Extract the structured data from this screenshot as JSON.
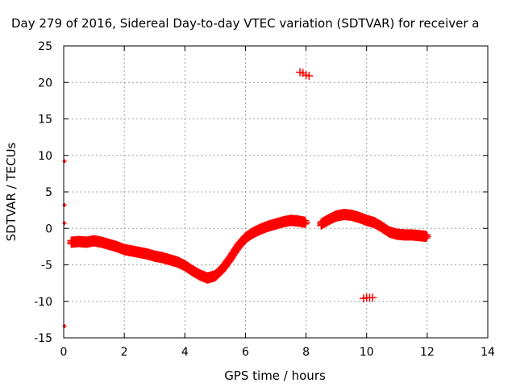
{
  "chart_data": {
    "type": "scatter",
    "title": "Day 279 of 2016, Sidereal Day-to-day VTEC variation (SDTVAR) for receiver a",
    "xlabel": "GPS time / hours",
    "ylabel": "SDTVAR / TECUs",
    "xlim": [
      0,
      14
    ],
    "ylim": [
      -15,
      25
    ],
    "x_ticks": [
      0,
      2,
      4,
      6,
      8,
      10,
      12,
      14
    ],
    "y_ticks": [
      -15,
      -10,
      -5,
      0,
      5,
      10,
      15,
      20,
      25
    ],
    "grid": true,
    "legend": "none",
    "marker": "+",
    "color": "#ff0000",
    "band_points": [
      {
        "x": 0.25,
        "y": -1.9
      },
      {
        "x": 0.5,
        "y": -1.8
      },
      {
        "x": 0.75,
        "y": -1.9
      },
      {
        "x": 1.0,
        "y": -1.7
      },
      {
        "x": 1.25,
        "y": -1.9
      },
      {
        "x": 1.5,
        "y": -2.2
      },
      {
        "x": 1.75,
        "y": -2.5
      },
      {
        "x": 2.0,
        "y": -2.9
      },
      {
        "x": 2.25,
        "y": -3.1
      },
      {
        "x": 2.5,
        "y": -3.3
      },
      {
        "x": 2.75,
        "y": -3.5
      },
      {
        "x": 3.0,
        "y": -3.8
      },
      {
        "x": 3.25,
        "y": -4.0
      },
      {
        "x": 3.5,
        "y": -4.3
      },
      {
        "x": 3.75,
        "y": -4.6
      },
      {
        "x": 4.0,
        "y": -5.1
      },
      {
        "x": 4.25,
        "y": -5.8
      },
      {
        "x": 4.5,
        "y": -6.4
      },
      {
        "x": 4.75,
        "y": -6.8
      },
      {
        "x": 5.0,
        "y": -6.5
      },
      {
        "x": 5.25,
        "y": -5.5
      },
      {
        "x": 5.5,
        "y": -4.1
      },
      {
        "x": 5.75,
        "y": -2.5
      },
      {
        "x": 6.0,
        "y": -1.3
      },
      {
        "x": 6.25,
        "y": -0.6
      },
      {
        "x": 6.5,
        "y": -0.1
      },
      {
        "x": 6.75,
        "y": 0.3
      },
      {
        "x": 7.0,
        "y": 0.6
      },
      {
        "x": 7.25,
        "y": 0.9
      },
      {
        "x": 7.5,
        "y": 1.1
      },
      {
        "x": 7.75,
        "y": 1.0
      },
      {
        "x": 8.0,
        "y": 0.8
      },
      {
        "x": 8.5,
        "y": 0.6
      },
      {
        "x": 8.75,
        "y": 1.2
      },
      {
        "x": 9.0,
        "y": 1.7
      },
      {
        "x": 9.25,
        "y": 1.9
      },
      {
        "x": 9.5,
        "y": 1.8
      },
      {
        "x": 9.75,
        "y": 1.5
      },
      {
        "x": 10.0,
        "y": 1.1
      },
      {
        "x": 10.25,
        "y": 0.8
      },
      {
        "x": 10.5,
        "y": 0.2
      },
      {
        "x": 10.75,
        "y": -0.5
      },
      {
        "x": 11.0,
        "y": -0.8
      },
      {
        "x": 11.25,
        "y": -0.9
      },
      {
        "x": 11.5,
        "y": -0.9
      },
      {
        "x": 11.75,
        "y": -1.0
      },
      {
        "x": 12.0,
        "y": -1.1
      }
    ],
    "outlier_points": [
      {
        "x": 7.8,
        "y": 21.4
      },
      {
        "x": 7.9,
        "y": 21.3
      },
      {
        "x": 8.0,
        "y": 21.0
      },
      {
        "x": 8.1,
        "y": 20.9
      },
      {
        "x": 9.9,
        "y": -9.6
      },
      {
        "x": 10.0,
        "y": -9.5
      },
      {
        "x": 10.1,
        "y": -9.5
      },
      {
        "x": 10.2,
        "y": -9.5
      },
      {
        "x": 0.0,
        "y": 9.2
      },
      {
        "x": 0.0,
        "y": 3.2
      },
      {
        "x": 0.0,
        "y": 0.7
      },
      {
        "x": 0.0,
        "y": -13.4
      }
    ]
  }
}
